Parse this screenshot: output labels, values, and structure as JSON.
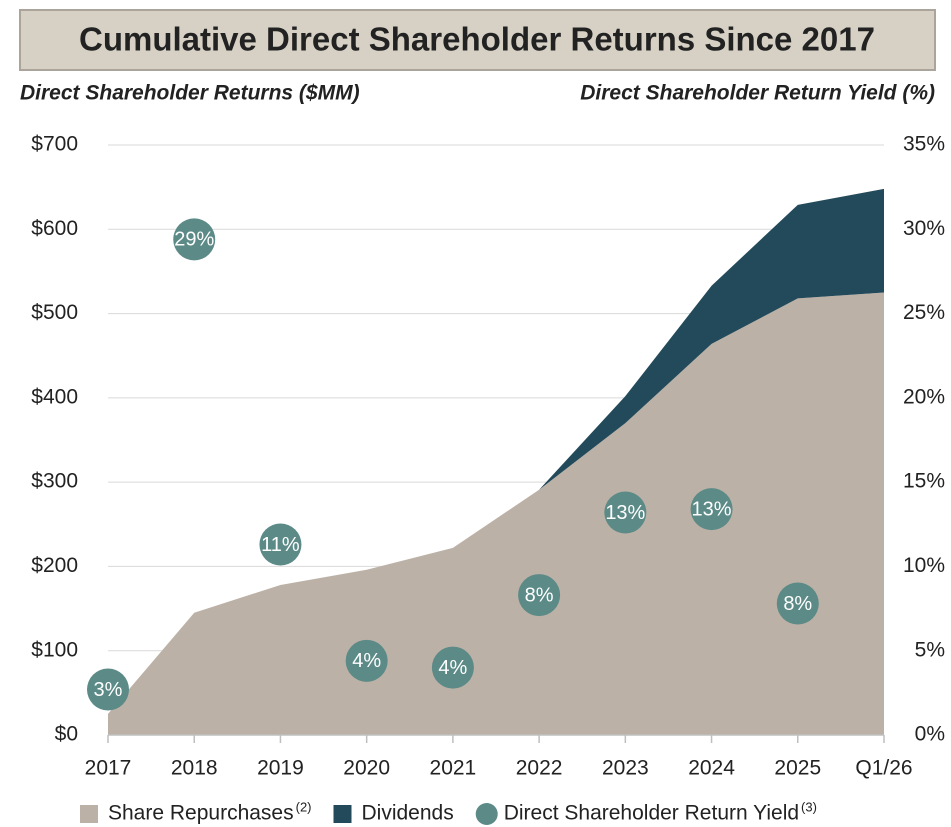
{
  "chart_data": {
    "type": "stacked_area_scatter",
    "title": "Cumulative Direct Shareholder Returns Since 2017",
    "y_label": "Direct Shareholder Returns ($MM)",
    "y2_label": "Direct Shareholder Return Yield (%)",
    "categories": [
      "2017",
      "2018",
      "2019",
      "2020",
      "2021",
      "2022",
      "2023",
      "2024",
      "2025",
      "Q1/26"
    ],
    "series": [
      {
        "name": "Share Repurchases",
        "note": "(2)",
        "color": "#bcb1a6",
        "type": "area",
        "values": [
          25,
          145,
          178,
          196,
          222,
          291,
          370,
          464,
          518,
          525
        ]
      },
      {
        "name": "Dividends",
        "color": "#234a5a",
        "type": "area",
        "values": [
          0,
          0,
          0,
          0,
          0,
          0,
          32,
          69,
          111,
          123
        ]
      },
      {
        "name": "Direct Shareholder Return Yield",
        "note": "(3)",
        "color": "#5b8a87",
        "type": "scatter",
        "axis": "y2",
        "values": [
          2.7,
          29.4,
          11.3,
          4.4,
          4.0,
          8.3,
          13.2,
          13.4,
          7.8,
          null
        ],
        "value_labels": [
          "3%",
          "29%",
          "11%",
          "4%",
          "4%",
          "8%",
          "13%",
          "13%",
          "8%",
          null
        ]
      }
    ],
    "ylim": [
      0,
      700
    ],
    "yticks": [
      {
        "value": 0,
        "label": "$0"
      },
      {
        "value": 100,
        "label": "$100"
      },
      {
        "value": 200,
        "label": "$200"
      },
      {
        "value": 300,
        "label": "$300"
      },
      {
        "value": 400,
        "label": "$400"
      },
      {
        "value": 500,
        "label": "$500"
      },
      {
        "value": 600,
        "label": "$600"
      },
      {
        "value": 700,
        "label": "$700"
      }
    ],
    "y2lim": [
      0,
      35
    ],
    "y2ticks": [
      {
        "value": 0,
        "label": "0%"
      },
      {
        "value": 5,
        "label": "5%"
      },
      {
        "value": 10,
        "label": "10%"
      },
      {
        "value": 15,
        "label": "15%"
      },
      {
        "value": 20,
        "label": "20%"
      },
      {
        "value": 25,
        "label": "25%"
      },
      {
        "value": 30,
        "label": "30%"
      },
      {
        "value": 35,
        "label": "35%"
      }
    ],
    "grid": true,
    "legend": "bottom"
  }
}
